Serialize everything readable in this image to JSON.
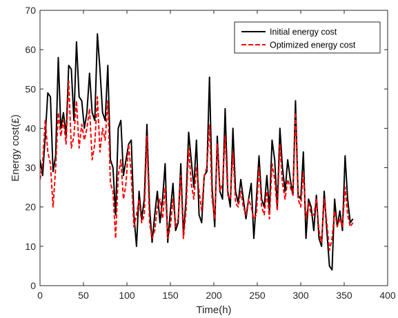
{
  "colors": {
    "initial": "#000000",
    "optimized": "#ff0000",
    "axis": "#262626",
    "background": "#ffffff"
  },
  "chart_data": {
    "type": "line",
    "title": "",
    "xlabel": "Time(h)",
    "ylabel": "Energy cost(£)",
    "xlim": [
      0,
      400
    ],
    "ylim": [
      0,
      70
    ],
    "xticks": [
      0,
      50,
      100,
      150,
      200,
      250,
      300,
      350,
      400
    ],
    "yticks": [
      0,
      10,
      20,
      30,
      40,
      50,
      60,
      70
    ],
    "grid": false,
    "legend_position": "top-right",
    "series": [
      {
        "name": "Initial energy cost",
        "style": "solid",
        "color": "#000000",
        "x": [
          0,
          3,
          6,
          9,
          12,
          15,
          18,
          21,
          24,
          27,
          30,
          33,
          36,
          39,
          42,
          45,
          48,
          51,
          54,
          57,
          60,
          63,
          66,
          69,
          72,
          75,
          78,
          81,
          84,
          87,
          90,
          93,
          96,
          99,
          102,
          105,
          108,
          111,
          114,
          117,
          120,
          123,
          126,
          129,
          132,
          135,
          138,
          141,
          144,
          147,
          150,
          153,
          156,
          159,
          162,
          165,
          168,
          171,
          174,
          177,
          180,
          183,
          186,
          189,
          192,
          195,
          198,
          201,
          204,
          207,
          210,
          213,
          216,
          219,
          222,
          225,
          228,
          231,
          234,
          237,
          240,
          243,
          246,
          249,
          252,
          255,
          258,
          261,
          264,
          267,
          270,
          273,
          276,
          279,
          282,
          285,
          288,
          291,
          294,
          297,
          300,
          303,
          306,
          309,
          312,
          315,
          318,
          321,
          324,
          327,
          330,
          333,
          336,
          339,
          342,
          345,
          348,
          351,
          354,
          357,
          360
        ],
        "values": [
          32,
          28,
          38,
          49,
          48,
          29,
          33,
          58,
          40,
          44,
          38,
          56,
          55,
          42,
          62,
          48,
          47,
          40,
          44,
          54,
          44,
          42,
          64,
          55,
          44,
          42,
          56,
          32,
          30,
          18,
          40,
          42,
          28,
          32,
          36,
          37,
          18,
          10,
          24,
          17,
          22,
          41,
          20,
          11,
          18,
          24,
          16,
          22,
          31,
          11,
          19,
          26,
          14,
          16,
          31,
          13,
          22,
          39,
          32,
          25,
          37,
          18,
          16,
          28,
          29,
          53,
          25,
          15,
          38,
          24,
          22,
          45,
          24,
          20,
          40,
          24,
          21,
          27,
          22,
          17,
          22,
          26,
          12,
          22,
          33,
          22,
          20,
          28,
          19,
          37,
          32,
          20,
          40,
          30,
          24,
          32,
          27,
          23,
          47,
          23,
          22,
          34,
          12,
          22,
          20,
          14,
          23,
          12,
          10,
          24,
          14,
          5,
          4,
          22,
          15,
          19,
          14,
          33,
          22,
          16,
          17
        ]
      },
      {
        "name": "Optimized energy cost",
        "style": "dashed",
        "color": "#ff0000",
        "x": [
          0,
          3,
          6,
          9,
          12,
          15,
          18,
          21,
          24,
          27,
          30,
          33,
          36,
          39,
          42,
          45,
          48,
          51,
          54,
          57,
          60,
          63,
          66,
          69,
          72,
          75,
          78,
          81,
          84,
          87,
          90,
          93,
          96,
          99,
          102,
          105,
          108,
          111,
          114,
          117,
          120,
          123,
          126,
          129,
          132,
          135,
          138,
          141,
          144,
          147,
          150,
          153,
          156,
          159,
          162,
          165,
          168,
          171,
          174,
          177,
          180,
          183,
          186,
          189,
          192,
          195,
          198,
          201,
          204,
          207,
          210,
          213,
          216,
          219,
          222,
          225,
          228,
          231,
          234,
          237,
          240,
          243,
          246,
          249,
          252,
          255,
          258,
          261,
          264,
          267,
          270,
          273,
          276,
          279,
          282,
          285,
          288,
          291,
          294,
          297,
          300,
          303,
          306,
          309,
          312,
          315,
          318,
          321,
          324,
          327,
          330,
          333,
          336,
          339,
          342,
          345,
          348,
          351,
          354,
          357,
          360
        ],
        "values": [
          27,
          31,
          42,
          34,
          31,
          20,
          30,
          44,
          38,
          42,
          36,
          52,
          35,
          38,
          47,
          35,
          41,
          37,
          40,
          45,
          32,
          36,
          48,
          34,
          40,
          37,
          47,
          26,
          24,
          12,
          28,
          32,
          22,
          26,
          36,
          28,
          15,
          18,
          22,
          16,
          18,
          38,
          16,
          12,
          14,
          20,
          22,
          17,
          25,
          12,
          15,
          22,
          15,
          17,
          28,
          12,
          19,
          35,
          26,
          22,
          30,
          24,
          19,
          28,
          30,
          41,
          22,
          17,
          36,
          24,
          26,
          38,
          23,
          22,
          34,
          21,
          20,
          24,
          20,
          18,
          22,
          20,
          17,
          18,
          30,
          20,
          18,
          24,
          17,
          31,
          27,
          19,
          36,
          26,
          22,
          27,
          25,
          23,
          44,
          22,
          20,
          29,
          17,
          21,
          18,
          18,
          22,
          14,
          11,
          22,
          16,
          9,
          12,
          19,
          15,
          17,
          15,
          25,
          18,
          15,
          16
        ]
      }
    ]
  }
}
